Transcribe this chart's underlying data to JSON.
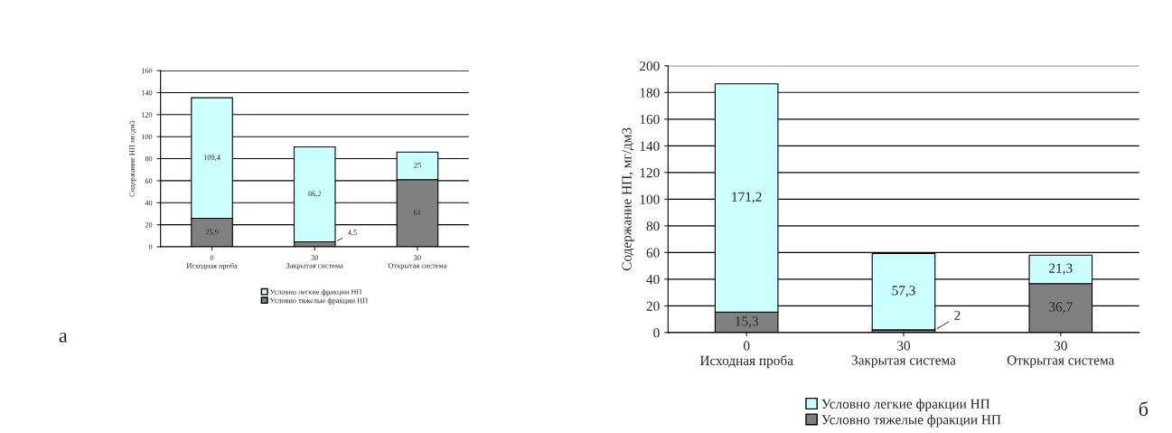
{
  "chart_data": [
    {
      "type": "bar",
      "stacked": true,
      "ylabel": "Содержание НП мг/дм3",
      "categories": [
        "0\nИсходная проба",
        "30\nЗакрытая система",
        "30\nОткрытая система"
      ],
      "series": [
        {
          "name": "Условно тяжелые фракции НП",
          "color": "#808080",
          "values": [
            25.9,
            4.5,
            61
          ],
          "value_labels": [
            "25,9",
            "4,5",
            "61"
          ]
        },
        {
          "name": "Условно легкие фракции НП",
          "color": "#ccffff",
          "values": [
            109.4,
            86.2,
            25
          ],
          "value_labels": [
            "109,4",
            "86,2",
            "25"
          ]
        }
      ],
      "ylim": [
        0,
        160
      ],
      "yticks": [
        0,
        20,
        40,
        60,
        80,
        100,
        120,
        140,
        160
      ],
      "grid": "y",
      "legend": "bottom",
      "annotations": [
        "а"
      ]
    },
    {
      "type": "bar",
      "stacked": true,
      "ylabel": "Содержание НП, мг/дм3",
      "categories": [
        "0\nИсходная проба",
        "30\nЗакрытая система",
        "30\nОткрытая система"
      ],
      "series": [
        {
          "name": "Условно тяжелые фракции НП",
          "color": "#808080",
          "values": [
            15.3,
            2,
            36.7
          ],
          "value_labels": [
            "15,3",
            "2",
            "36,7"
          ]
        },
        {
          "name": "Условно легкие фракции НП",
          "color": "#ccffff",
          "values": [
            171.2,
            57.3,
            21.3
          ],
          "value_labels": [
            "171,2",
            "57,3",
            "21,3"
          ]
        }
      ],
      "ylim": [
        0,
        200
      ],
      "yticks": [
        0,
        20,
        40,
        60,
        80,
        100,
        120,
        140,
        160,
        180,
        200
      ],
      "grid": "y",
      "legend": "bottom",
      "annotations": [
        "б"
      ]
    }
  ]
}
